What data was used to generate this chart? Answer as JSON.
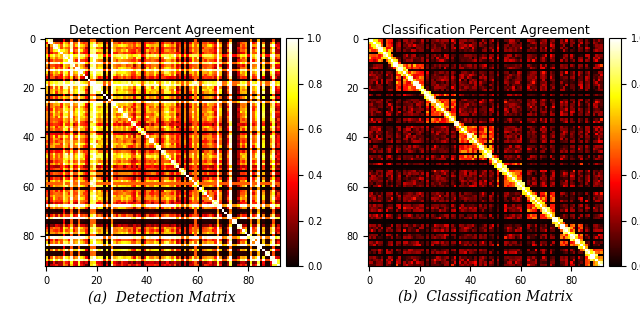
{
  "title_left": "Detection Percent Agreement",
  "title_right": "Classification Percent Agreement",
  "caption_left": "(a)  Detection Matrix",
  "caption_right": "(b)  Classification Matrix",
  "n": 93,
  "vmin": 0.0,
  "vmax": 1.0,
  "colorbar_ticks": [
    0.0,
    0.2,
    0.4,
    0.6,
    0.8,
    1.0
  ],
  "xticks": [
    0,
    20,
    40,
    60,
    80
  ],
  "yticks": [
    0,
    20,
    40,
    60,
    80
  ],
  "cmap": "hot",
  "fig_width": 6.4,
  "fig_height": 3.17,
  "caption_fontsize": 10,
  "title_fontsize": 9
}
